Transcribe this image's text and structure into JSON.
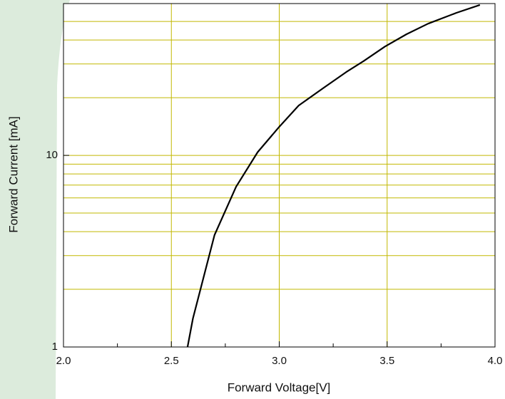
{
  "chart_data": {
    "type": "line",
    "x_label": "Forward Voltage[V]",
    "y_label": "Forward Current [mA]",
    "log_y": true,
    "grid": true,
    "xlim": [
      2.0,
      4.0
    ],
    "xticks": [
      {
        "value": 2.0,
        "label": "2.0"
      },
      {
        "value": 2.5,
        "label": "2.5"
      },
      {
        "value": 3.0,
        "label": "3.0"
      },
      {
        "value": 3.5,
        "label": "3.5"
      },
      {
        "value": 4.0,
        "label": "4.0"
      }
    ],
    "xminor_ticks": [
      2.25,
      2.75,
      3.25,
      3.75
    ],
    "ylim": [
      1,
      62
    ],
    "yticks": [
      1,
      10
    ],
    "yminor_grid": [
      2,
      3,
      4,
      5,
      6,
      7,
      8,
      9,
      20,
      30,
      40,
      50
    ],
    "series": [
      {
        "color": "#000000",
        "x": [
          2.575,
          2.6,
          2.7,
          2.8,
          2.9,
          3.0,
          3.09,
          3.21,
          3.31,
          3.39,
          3.49,
          3.59,
          3.69,
          3.82,
          3.93
        ],
        "values": [
          1,
          1.41,
          3.84,
          6.86,
          10.4,
          14.1,
          18.2,
          22.7,
          27.2,
          31,
          37,
          42.9,
          48.7,
          55.4,
          61
        ]
      }
    ]
  }
}
